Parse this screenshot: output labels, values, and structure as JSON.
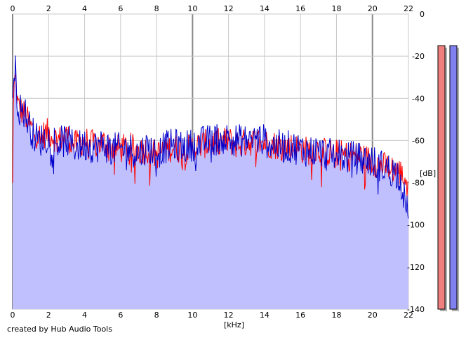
{
  "credit": "created by Hub Audio Tools",
  "chart_data": {
    "type": "line",
    "xlabel": "[kHz]",
    "ylabel": "[dB]",
    "xlim": [
      0,
      22
    ],
    "ylim": [
      -140,
      0
    ],
    "x_ticks": [
      0,
      2,
      4,
      6,
      8,
      10,
      12,
      14,
      16,
      18,
      20,
      22
    ],
    "y_ticks": [
      0,
      -20,
      -40,
      -60,
      -80,
      -100,
      -120,
      -140
    ],
    "grid": true,
    "colors": {
      "fill": "#c0c0ff",
      "left_channel": "#ff0000",
      "right_channel": "#0000cc",
      "meter_left": "#f08080",
      "meter_right": "#8080f0",
      "grid": "#c8c8c8"
    },
    "series": [
      {
        "channel": "left",
        "x": [
          0,
          0.05,
          0.15,
          0.3,
          0.5,
          0.7,
          0.9,
          1.2,
          1.5,
          2,
          2.5,
          3,
          3.5,
          4,
          4.5,
          5,
          5.5,
          6,
          6.5,
          7,
          7.5,
          8,
          8.5,
          9,
          9.5,
          10,
          10.5,
          11,
          11.5,
          12,
          12.5,
          13,
          13.5,
          14,
          14.5,
          15,
          15.5,
          16,
          16.5,
          17,
          17.5,
          18,
          18.5,
          19,
          19.5,
          20,
          20.5,
          21,
          21.5,
          22
        ],
        "values": [
          -80,
          -35,
          -30,
          -44,
          -46,
          -48,
          -52,
          -56,
          -58,
          -56,
          -60,
          -58,
          -62,
          -60,
          -62,
          -61,
          -63,
          -64,
          -63,
          -65,
          -64,
          -67,
          -64,
          -63,
          -65,
          -63,
          -62,
          -61,
          -61,
          -60,
          -62,
          -61,
          -60,
          -61,
          -62,
          -63,
          -63,
          -64,
          -65,
          -64,
          -66,
          -66,
          -67,
          -67,
          -68,
          -70,
          -72,
          -73,
          -75,
          -80
        ]
      },
      {
        "channel": "right",
        "x": [
          0,
          0.05,
          0.15,
          0.3,
          0.5,
          0.7,
          0.9,
          1.2,
          1.5,
          2,
          2.5,
          3,
          3.5,
          4,
          4.5,
          5,
          5.5,
          6,
          6.5,
          7,
          7.5,
          8,
          8.5,
          9,
          9.5,
          10,
          10.5,
          11,
          11.5,
          12,
          12.5,
          13,
          13.5,
          14,
          14.5,
          15,
          15.5,
          16,
          16.5,
          17,
          17.5,
          18,
          18.5,
          19,
          19.5,
          20,
          20.5,
          21,
          21.5,
          22
        ],
        "values": [
          -40,
          -32,
          -26,
          -45,
          -45,
          -47,
          -52,
          -58,
          -60,
          -58,
          -61,
          -60,
          -63,
          -62,
          -63,
          -62,
          -64,
          -64,
          -64,
          -66,
          -63,
          -66,
          -63,
          -62,
          -63,
          -62,
          -61,
          -60,
          -59,
          -59,
          -60,
          -60,
          -59,
          -60,
          -62,
          -63,
          -63,
          -64,
          -65,
          -65,
          -67,
          -66,
          -68,
          -68,
          -69,
          -70,
          -72,
          -74,
          -76,
          -97
        ]
      }
    ],
    "level_meters": [
      {
        "channel": "left",
        "value_db": -15
      },
      {
        "channel": "right",
        "value_db": -15
      }
    ]
  }
}
